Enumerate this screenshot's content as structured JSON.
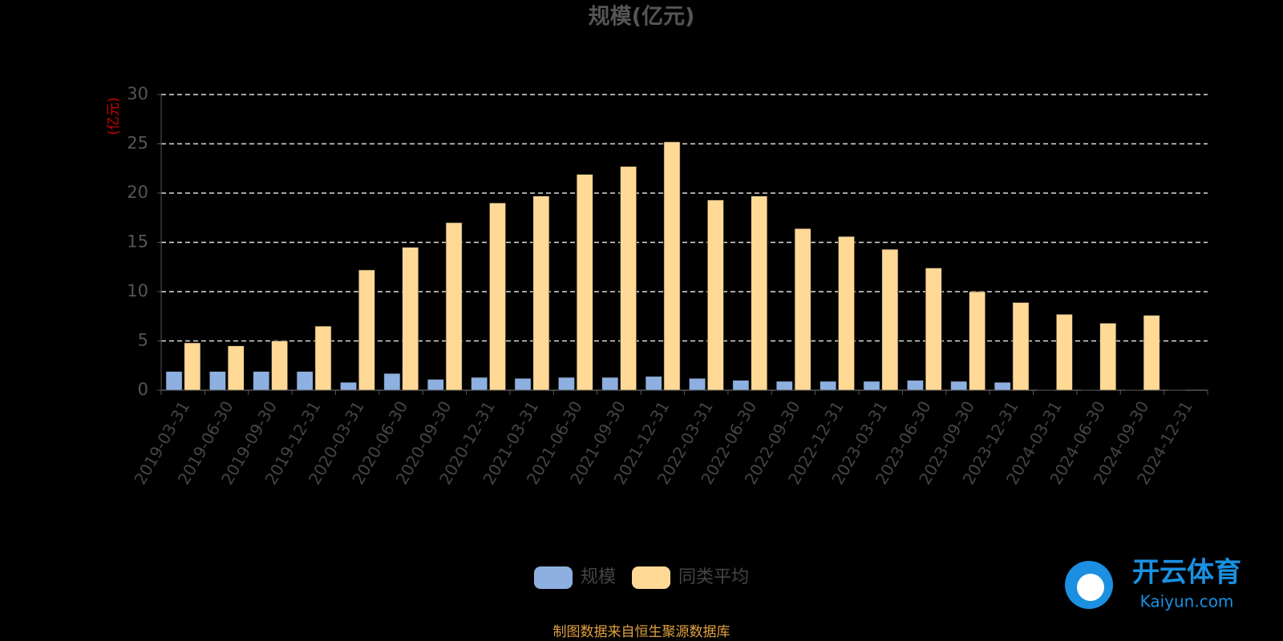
{
  "chart_data": {
    "type": "bar",
    "title": "规模(亿元)",
    "y_label": "(亿元)",
    "categories": [
      "2019-03-31",
      "2019-06-30",
      "2019-09-30",
      "2019-12-31",
      "2020-03-31",
      "2020-06-30",
      "2020-09-30",
      "2020-12-31",
      "2021-03-31",
      "2021-06-30",
      "2021-09-30",
      "2021-12-31",
      "2022-03-31",
      "2022-06-30",
      "2022-09-30",
      "2022-12-31",
      "2023-03-31",
      "2023-06-30",
      "2023-09-30",
      "2023-12-31",
      "2024-03-31",
      "2024-06-30",
      "2024-09-30",
      "2024-12-31"
    ],
    "series": [
      {
        "name": "规模",
        "color": "#8eb0e0",
        "values": [
          1.9,
          1.9,
          1.9,
          1.9,
          0.8,
          1.7,
          1.1,
          1.3,
          1.2,
          1.3,
          1.3,
          1.4,
          1.2,
          1.0,
          0.9,
          0.9,
          0.9,
          1.0,
          0.9,
          0.8,
          0.02,
          0.02,
          0.05,
          0.05
        ]
      },
      {
        "name": "同类平均",
        "color": "#ffd995",
        "values": [
          4.8,
          4.5,
          5.0,
          6.5,
          12.2,
          14.5,
          17.0,
          19.0,
          19.7,
          21.9,
          22.7,
          25.2,
          19.3,
          19.7,
          16.4,
          15.6,
          14.3,
          12.4,
          10.0,
          8.9,
          7.7,
          6.8,
          7.6,
          null
        ]
      }
    ],
    "ylim": [
      0,
      30
    ],
    "yticks": [
      0,
      5,
      10,
      15,
      20,
      25,
      30
    ],
    "grid": true,
    "source": "制图数据来自恒生聚源数据库"
  },
  "watermark": {
    "name": "开云体育",
    "site": "Kaiyun.com"
  }
}
